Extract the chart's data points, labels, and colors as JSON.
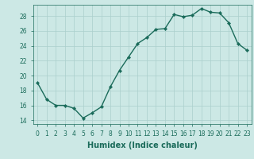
{
  "x": [
    0,
    1,
    2,
    3,
    4,
    5,
    6,
    7,
    8,
    9,
    10,
    11,
    12,
    13,
    14,
    15,
    16,
    17,
    18,
    19,
    20,
    21,
    22,
    23
  ],
  "y": [
    19.0,
    16.8,
    16.0,
    16.0,
    15.6,
    14.3,
    15.0,
    15.8,
    18.5,
    20.7,
    22.5,
    24.3,
    25.1,
    26.2,
    26.3,
    28.2,
    27.9,
    28.1,
    29.0,
    28.5,
    28.4,
    27.1,
    24.3,
    23.4
  ],
  "line_color": "#1a6b5a",
  "marker": "D",
  "marker_size": 2.2,
  "bg_color": "#cce8e5",
  "grid_color": "#aacfcc",
  "xlabel": "Humidex (Indice chaleur)",
  "ylim": [
    13.5,
    29.5
  ],
  "xlim": [
    -0.5,
    23.5
  ],
  "yticks": [
    14,
    16,
    18,
    20,
    22,
    24,
    26,
    28
  ],
  "xticks": [
    0,
    1,
    2,
    3,
    4,
    5,
    6,
    7,
    8,
    9,
    10,
    11,
    12,
    13,
    14,
    15,
    16,
    17,
    18,
    19,
    20,
    21,
    22,
    23
  ],
  "tick_fontsize": 5.5,
  "xlabel_fontsize": 7.0,
  "line_width": 1.0,
  "fig_width": 3.2,
  "fig_height": 2.0,
  "dpi": 100
}
